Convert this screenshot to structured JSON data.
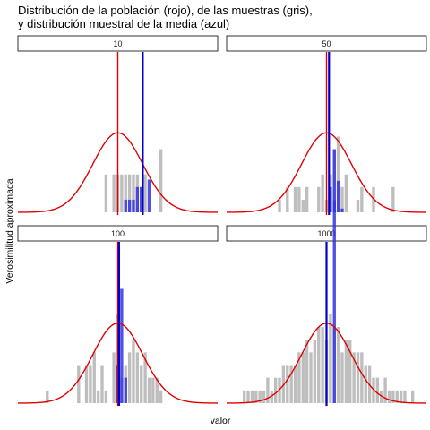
{
  "chart_data": {
    "type": "faceted-histogram",
    "title_lines": [
      "Distribución de la población (rojo), de las muestras (gris),",
      "y distribución muestral de la media (azul)"
    ],
    "xlabel": "valor",
    "ylabel": "Verosimilitud aproximada",
    "colors": {
      "population": "#e00000",
      "sample": "#bebebe",
      "sampling_dist": "#3333dd",
      "mean_line": "#0000cc",
      "strip_fill": "#ffffff",
      "strip_border": "#000000"
    },
    "panels": [
      {
        "label": "10",
        "sample_mean": 1.0,
        "population_mean": 0.0,
        "sample_bins": [
          0,
          0,
          0,
          0,
          0,
          0,
          0,
          0,
          0,
          0,
          0,
          0,
          0,
          0,
          0,
          0,
          0,
          0,
          0,
          0,
          0,
          0,
          3,
          0,
          3,
          3,
          3,
          3,
          3,
          3,
          3,
          2,
          3,
          0,
          0,
          0,
          5,
          0,
          0,
          0,
          0,
          0,
          0,
          0,
          0,
          0,
          0,
          0,
          0,
          0,
          0
        ],
        "mean_bins": [
          0,
          0,
          0,
          0,
          0,
          0,
          0,
          0,
          0,
          0,
          0,
          0,
          0,
          0,
          0,
          0,
          0,
          0,
          0,
          0,
          0,
          0,
          0,
          0,
          0,
          0,
          0,
          1,
          1,
          1,
          2,
          2,
          0,
          2.6,
          0,
          0,
          0,
          0,
          0,
          0,
          0,
          0,
          0,
          0,
          0,
          0,
          0,
          0,
          0,
          0,
          0
        ]
      },
      {
        "label": "50",
        "sample_mean": 0.1,
        "population_mean": 0.0,
        "sample_bins": [
          0,
          0,
          0,
          0,
          0,
          0,
          0,
          0,
          0,
          0,
          0,
          0,
          0,
          1,
          0,
          2,
          0,
          2,
          2,
          1,
          2,
          0,
          0,
          2,
          3,
          1,
          3,
          5,
          6,
          2,
          3,
          0,
          0,
          1,
          2,
          0,
          0,
          2,
          0,
          0,
          0,
          0,
          2,
          0,
          0,
          0,
          0,
          0,
          0,
          0,
          0
        ],
        "mean_bins": [
          0,
          0,
          0,
          0,
          0,
          0,
          0,
          0,
          0,
          0,
          0,
          0,
          0,
          0,
          0,
          0,
          0,
          0,
          0,
          0,
          0,
          0,
          0,
          0,
          0,
          0,
          2,
          5,
          2.5,
          0.3,
          0,
          0,
          0,
          0,
          0,
          0,
          0,
          0,
          0,
          0,
          0,
          0,
          0,
          0,
          0,
          0,
          0,
          0,
          0,
          0,
          0
        ]
      },
      {
        "label": "100",
        "sample_mean": 0.05,
        "population_mean": 0.0,
        "sample_bins": [
          0,
          0,
          0,
          0,
          0,
          0,
          0,
          1,
          0,
          0,
          0,
          0,
          0,
          0,
          0,
          3,
          0,
          3,
          3,
          4,
          1,
          3,
          1,
          0,
          4,
          7,
          2,
          3,
          4,
          5,
          4,
          3,
          4,
          2,
          2,
          2,
          1,
          0,
          0,
          0,
          0,
          0,
          0,
          0,
          0,
          0,
          0,
          0,
          0,
          0,
          0
        ],
        "mean_bins": [
          0,
          0,
          0,
          0,
          0,
          0,
          0,
          0,
          0,
          0,
          0,
          0,
          0,
          0,
          0,
          0,
          0,
          0,
          0,
          0,
          0,
          0,
          0,
          0,
          0,
          3,
          9,
          2,
          0,
          0,
          0,
          0,
          0,
          0,
          0,
          0,
          0,
          0,
          0,
          0,
          0,
          0,
          0,
          0,
          0,
          0,
          0,
          0,
          0,
          0,
          0
        ]
      },
      {
        "label": "1000",
        "sample_mean": 0.0,
        "population_mean": 0.0,
        "sample_bins": [
          0,
          0,
          0,
          0,
          1,
          1,
          1,
          1,
          1,
          1,
          2,
          1,
          2,
          2,
          3,
          3,
          3,
          3,
          4,
          4,
          5,
          4,
          5,
          6,
          6,
          5,
          7,
          6,
          6,
          4,
          5,
          5,
          4,
          4,
          4,
          3,
          3,
          2,
          2,
          1,
          2,
          1,
          1,
          1,
          1,
          1,
          0,
          1,
          0,
          0,
          0
        ],
        "mean_bins": [
          0,
          0,
          0,
          0,
          0,
          0,
          0,
          0,
          0,
          0,
          0,
          0,
          0,
          0,
          0,
          0,
          0,
          0,
          0,
          0,
          0,
          0,
          0,
          0,
          0,
          0,
          0,
          16,
          0,
          0,
          0,
          0,
          0,
          0,
          0,
          0,
          0,
          0,
          0,
          0,
          0,
          0,
          0,
          0,
          0,
          0,
          0,
          0,
          0,
          0,
          0
        ]
      }
    ],
    "x_range": [
      -4,
      4
    ],
    "sample_y_max": 12,
    "density_peak": 6.3
  }
}
